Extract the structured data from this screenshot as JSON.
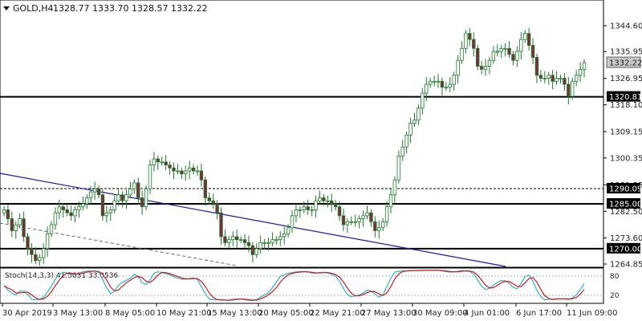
{
  "header": {
    "symbol_label": "GOLD,H4",
    "ohlc": "1328.77 1333.70 1328.57 1332.22",
    "dropdown_icon": "triangle-down-icon"
  },
  "colors": {
    "background": "#ffffff",
    "candle_up_body": "#ffffff",
    "candle_down_body": "#7a2f3a",
    "candle_wick": "#1c7a2a",
    "trendline": "#1a1aaa",
    "hline": "#000000",
    "dashed_line": "#555555",
    "stoch_main": "#2bb4c8",
    "stoch_signal": "#d0191b"
  },
  "price_axis": {
    "ticks": [
      "1344.60",
      "1335.95",
      "1326.95",
      "1318.10",
      "1309.15",
      "1300.35",
      "1291.35",
      "1282.50",
      "1273.60",
      "1264.85"
    ],
    "current_price_tag": "1332.22"
  },
  "levels": {
    "solid": [
      "1320.81",
      "1285.00",
      "1270.00"
    ],
    "dashed": [
      "1290.09"
    ]
  },
  "indicator": {
    "label": "Stoch(14,3,3) 41.5031 33.0536",
    "axis_ticks": [
      "80",
      "20"
    ]
  },
  "time_axis": {
    "ticks": [
      "30 Apr 2019",
      "3 May 13:00",
      "8 May 05:00",
      "10 May 21:00",
      "15 May 13:00",
      "20 May 05:00",
      "22 May 21:00",
      "27 May 13:00",
      "30 May 09:00",
      "4 Jun 01:00",
      "6 Jun 17:00",
      "11 Jun 09:00"
    ]
  },
  "chart_data": {
    "type": "candlestick",
    "symbol": "GOLD",
    "timeframe": "H4",
    "last_ohlc": [
      1328.77,
      1333.7,
      1328.57,
      1332.22
    ],
    "ylim": [
      1262,
      1352
    ],
    "horizontal_levels": [
      1320.81,
      1285.0,
      1270.0
    ],
    "dashed_levels": [
      1290.09
    ],
    "close_series": [
      1283,
      1280,
      1276,
      1278,
      1280,
      1274,
      1270,
      1268,
      1266,
      1267,
      1270,
      1275,
      1278,
      1282,
      1284,
      1283,
      1282,
      1281,
      1283,
      1284,
      1285,
      1287,
      1289,
      1290,
      1288,
      1281,
      1282,
      1283,
      1286,
      1288,
      1286,
      1288,
      1290,
      1292,
      1287,
      1284,
      1290,
      1298,
      1300,
      1299,
      1299,
      1298,
      1297,
      1296,
      1296,
      1295,
      1296,
      1297,
      1296,
      1296,
      1293,
      1287,
      1286,
      1285,
      1282,
      1274,
      1272,
      1273,
      1274,
      1273,
      1273,
      1272,
      1271,
      1268,
      1270,
      1272,
      1272,
      1272,
      1273,
      1273,
      1274,
      1275,
      1277,
      1281,
      1283,
      1283,
      1284,
      1283,
      1283,
      1286,
      1287,
      1286,
      1286,
      1285,
      1284,
      1281,
      1278,
      1279,
      1279,
      1279,
      1280,
      1281,
      1282,
      1279,
      1276,
      1277,
      1279,
      1284,
      1288,
      1293,
      1301,
      1304,
      1308,
      1312,
      1313,
      1317,
      1322,
      1325,
      1326,
      1326,
      1326,
      1324,
      1324,
      1325,
      1328,
      1333,
      1337,
      1342,
      1340,
      1337,
      1331,
      1330,
      1331,
      1333,
      1336,
      1336,
      1337,
      1337,
      1335,
      1333,
      1336,
      1340,
      1342,
      1338,
      1334,
      1328,
      1327,
      1327,
      1328,
      1326,
      1327,
      1327,
      1325,
      1321,
      1326,
      1328,
      1330,
      1332.22
    ],
    "stoch_main_last": 41.5031,
    "stoch_signal_last": 33.0536
  }
}
